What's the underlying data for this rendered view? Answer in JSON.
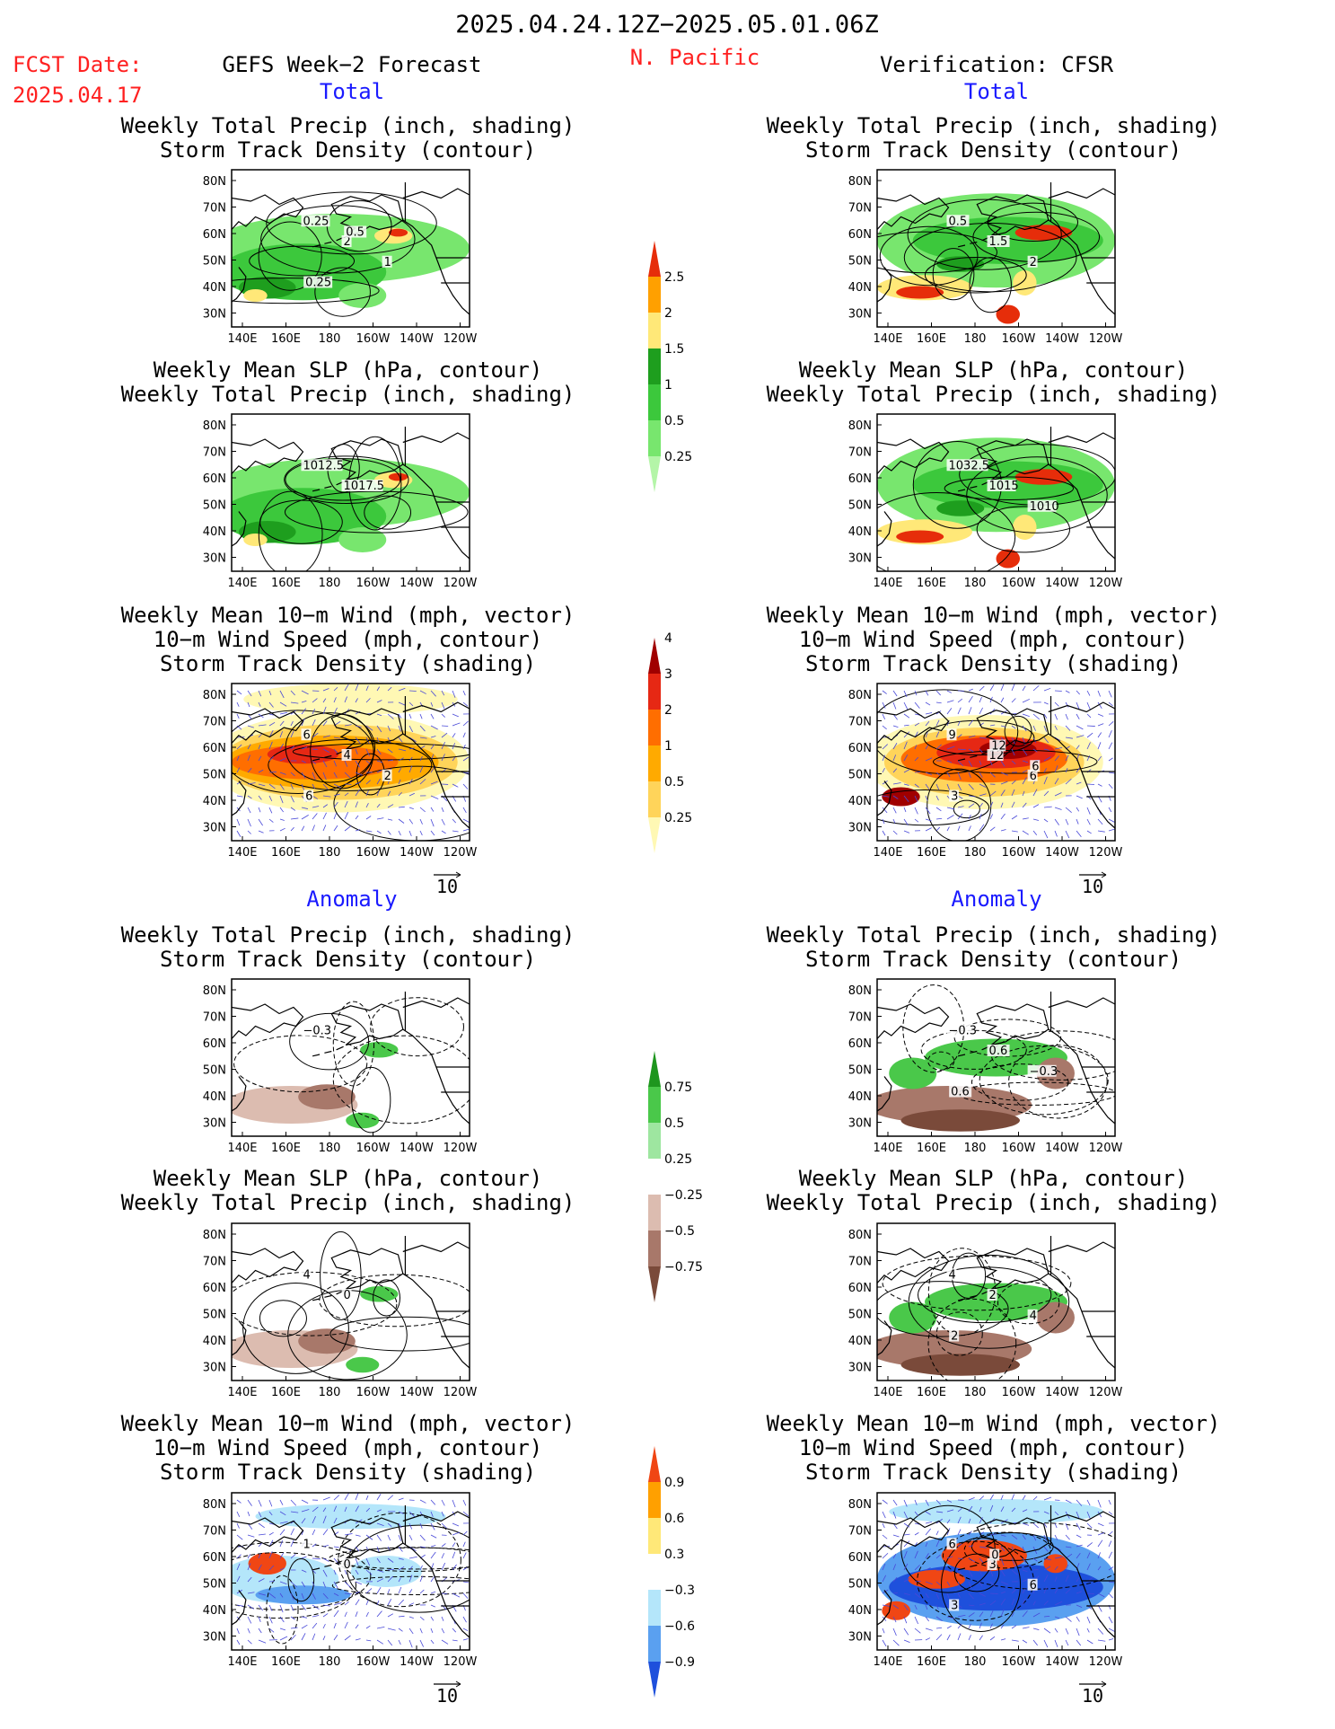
{
  "header": {
    "date_range": "2025.04.24.12Z−2025.05.01.06Z",
    "fcst_label": "FCST Date:",
    "fcst_date": "2025.04.17",
    "left_title": "GEFS Week−2 Forecast",
    "region": "N. Pacific",
    "right_title": "Verification: CFSR",
    "total_label": "Total",
    "anomaly_label": "Anomaly"
  },
  "axes": {
    "lat_labels": [
      "80N",
      "70N",
      "60N",
      "50N",
      "40N",
      "30N"
    ],
    "lon_labels": [
      "140E",
      "160E",
      "180",
      "160W",
      "140W",
      "120W"
    ]
  },
  "panel_titles": {
    "precip_storm": [
      "Weekly Total Precip (inch, shading)",
      "Storm Track Density (contour)"
    ],
    "slp_precip": [
      "Weekly Mean SLP (hPa, contour)",
      "Weekly Total Precip (inch, shading)"
    ],
    "wind_storm": [
      "Weekly Mean 10−m Wind (mph, vector)",
      "10−m Wind Speed (mph, contour)",
      "Storm Track Density (shading)"
    ]
  },
  "vector_ref": "10",
  "panels": [
    {
      "id": "fc-total-precip",
      "type": "precip",
      "labels": [
        "0.25",
        "2",
        "1",
        "0.25",
        "0.5"
      ]
    },
    {
      "id": "fc-total-slp",
      "type": "precip",
      "labels": [
        "1012.5",
        "1017.5"
      ]
    },
    {
      "id": "fc-total-wind",
      "type": "storm",
      "labels": [
        "6",
        "4",
        "2",
        "6"
      ]
    },
    {
      "id": "vf-total-precip",
      "type": "precip",
      "labels": [
        "0.5",
        "1.5",
        "2"
      ]
    },
    {
      "id": "vf-total-slp",
      "type": "precip",
      "labels": [
        "1032.5",
        "1015",
        "1010"
      ]
    },
    {
      "id": "vf-total-wind",
      "type": "storm",
      "labels": [
        "9",
        "12",
        "6",
        "3",
        "12",
        "6"
      ]
    },
    {
      "id": "fc-anom-precip",
      "type": "aprecip",
      "labels": [
        "−0.3"
      ]
    },
    {
      "id": "fc-anom-slp",
      "type": "aprecip",
      "labels": [
        "4",
        "0"
      ]
    },
    {
      "id": "fc-anom-wind",
      "type": "astorm",
      "labels": [
        "1",
        "0"
      ]
    },
    {
      "id": "vf-anom-precip",
      "type": "aprecip",
      "labels": [
        "−0.3",
        "0.6",
        "−0.3",
        "0.6"
      ]
    },
    {
      "id": "vf-anom-slp",
      "type": "aprecip",
      "labels": [
        "4",
        "2",
        "4",
        "2"
      ]
    },
    {
      "id": "vf-anom-wind",
      "type": "astorm",
      "labels": [
        "6",
        "3",
        "6",
        "3",
        "0"
      ]
    }
  ],
  "colorbars": [
    {
      "id": "cb-precip",
      "colors": [
        "#b4f5a8",
        "#78e66e",
        "#3cc83c",
        "#1e9e1e",
        "#ffe878",
        "#ffa000",
        "#e62d0a"
      ],
      "labels": [
        "0.25",
        "0.5",
        "1",
        "1.5",
        "2",
        "2.5"
      ]
    },
    {
      "id": "cb-storm",
      "colors": [
        "#fff8b4",
        "#ffd45a",
        "#ffaa00",
        "#ff6e00",
        "#e62814",
        "#a00000"
      ],
      "labels": [
        "0.25",
        "0.5",
        "1",
        "2",
        "3",
        "4"
      ]
    },
    {
      "id": "cb-aprecip",
      "colors": [
        "#7a4a3a",
        "#a8786a",
        "#dcbcb0",
        "#ffffff",
        "#9ee6a0",
        "#4ac84a",
        "#1e961e"
      ],
      "labels": [
        "−0.75",
        "−0.5",
        "−0.25",
        "0.25",
        "0.5",
        "0.75"
      ]
    },
    {
      "id": "cb-astorm",
      "colors": [
        "#1e50dc",
        "#5aa0f0",
        "#b4e6fa",
        "#ffffff",
        "#ffe878",
        "#ffa000",
        "#f04614"
      ],
      "labels": [
        "−0.9",
        "−0.6",
        "−0.3",
        "0.3",
        "0.6",
        "0.9"
      ]
    }
  ],
  "colors": {
    "header_red": "#ff2020",
    "section_blue": "#1a1aff",
    "contour": "#000000",
    "vector": "#4848d8",
    "coast": "#000000"
  }
}
